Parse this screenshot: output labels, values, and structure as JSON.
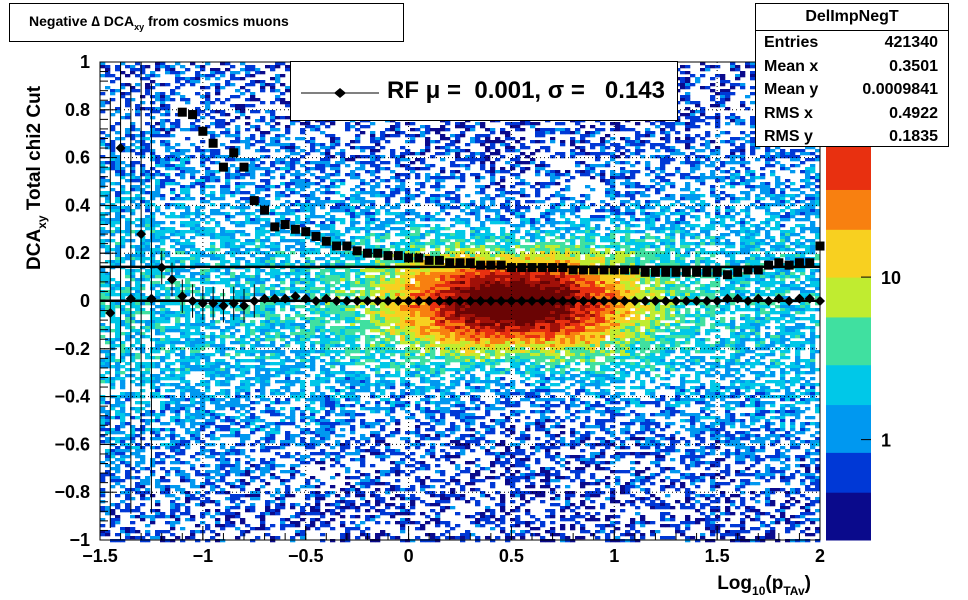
{
  "title": {
    "pre": "Negative ",
    "delta": "∆",
    "dca": " DCA",
    "sub": "xy",
    "post": " from cosmics muons"
  },
  "stats": {
    "name": "DelImpNegT",
    "rows": [
      {
        "label": "Entries",
        "value": "421340"
      },
      {
        "label": "Mean x",
        "value": "0.3501"
      },
      {
        "label": "Mean y",
        "value": "0.0009841"
      },
      {
        "label": "RMS x",
        "value": "0.4922"
      },
      {
        "label": "RMS y",
        "value": "0.1835"
      }
    ]
  },
  "legend": {
    "label": "RF μ =  0.001, σ =   0.143"
  },
  "colors": {
    "markers": "#000000",
    "fit_line": "#000000",
    "palette": [
      "#0a0a8c",
      "#0038d6",
      "#0098f0",
      "#00c8e8",
      "#40e0a0",
      "#c0ec30",
      "#f8d020",
      "#f88010",
      "#e83010",
      "#a01008",
      "#6a0404"
    ]
  },
  "chart_data": {
    "type": "heatmap",
    "title": "Negative ∆ DCA xy from cosmics muons",
    "xlabel": "Log10(pTAv)",
    "ylabel": "DCAxy  Total chi2 Cut",
    "xlim": [
      -1.5,
      2
    ],
    "ylim": [
      -1,
      1
    ],
    "x_ticks": [
      "−1.5",
      "−1",
      "−0.5",
      "0",
      "0.5",
      "1",
      "1.5",
      "2"
    ],
    "y_ticks": [
      "−1",
      "−0.8",
      "−0.6",
      "−0.4",
      "−0.2",
      "0",
      "0.2",
      "0.4",
      "0.6",
      "0.8",
      "1"
    ],
    "z_scale": "log",
    "z_ticks": [
      "1",
      "10"
    ],
    "grid": true,
    "series": [
      {
        "name": "RF μ",
        "marker": "diamond",
        "x": [
          -1.45,
          -1.4,
          -1.35,
          -1.3,
          -1.25,
          -1.2,
          -1.15,
          -1.1,
          -1.05,
          -1.0,
          -0.95,
          -0.9,
          -0.85,
          -0.8,
          -0.75,
          -0.7,
          -0.65,
          -0.6,
          -0.55,
          -0.5,
          -0.45,
          -0.4,
          -0.35,
          -0.3,
          -0.25,
          -0.2,
          -0.15,
          -0.1,
          -0.05,
          0.0,
          0.05,
          0.1,
          0.15,
          0.2,
          0.25,
          0.3,
          0.35,
          0.4,
          0.45,
          0.5,
          0.55,
          0.6,
          0.65,
          0.7,
          0.75,
          0.8,
          0.85,
          0.9,
          0.95,
          1.0,
          1.05,
          1.1,
          1.15,
          1.2,
          1.25,
          1.3,
          1.35,
          1.4,
          1.45,
          1.5,
          1.55,
          1.6,
          1.65,
          1.7,
          1.75,
          1.8,
          1.85,
          1.9,
          1.95,
          2.0
        ],
        "y": [
          -0.05,
          0.64,
          0.01,
          0.28,
          0.01,
          0.14,
          0.09,
          0.02,
          0.0,
          -0.01,
          -0.01,
          -0.02,
          -0.01,
          -0.02,
          0.0,
          0.01,
          0.01,
          0.01,
          0.02,
          0.01,
          0.0,
          0.01,
          0.0,
          0.0,
          0.0,
          0.0,
          0.0,
          0.0,
          0.0,
          0.0,
          0.0,
          0.0,
          0.0,
          0.0,
          0.0,
          0.0,
          0.0,
          0.0,
          0.0,
          0.0,
          0.0,
          0.0,
          0.0,
          0.0,
          0.0,
          0.0,
          0.0,
          0.0,
          0.0,
          0.0,
          0.0,
          0.0,
          0.0,
          0.0,
          0.0,
          0.0,
          0.0,
          0.0,
          0.0,
          0.0,
          0.01,
          0.01,
          0.0,
          0.01,
          0.0,
          0.01,
          0.0,
          0.01,
          0.01,
          0.0
        ]
      },
      {
        "name": "σ",
        "marker": "square",
        "x": [
          -1.1,
          -1.05,
          -1.0,
          -0.95,
          -0.9,
          -0.85,
          -0.8,
          -0.75,
          -0.7,
          -0.65,
          -0.6,
          -0.55,
          -0.5,
          -0.45,
          -0.4,
          -0.35,
          -0.3,
          -0.25,
          -0.2,
          -0.15,
          -0.1,
          -0.05,
          0.0,
          0.05,
          0.1,
          0.15,
          0.2,
          0.25,
          0.3,
          0.35,
          0.4,
          0.45,
          0.5,
          0.55,
          0.6,
          0.65,
          0.7,
          0.75,
          0.8,
          0.85,
          0.9,
          0.95,
          1.0,
          1.05,
          1.1,
          1.15,
          1.2,
          1.25,
          1.3,
          1.35,
          1.4,
          1.45,
          1.5,
          1.55,
          1.6,
          1.65,
          1.7,
          1.75,
          1.8,
          1.85,
          1.9,
          1.95,
          2.0
        ],
        "y": [
          0.79,
          0.78,
          0.71,
          0.66,
          0.56,
          0.62,
          0.56,
          0.42,
          0.38,
          0.31,
          0.32,
          0.3,
          0.29,
          0.27,
          0.25,
          0.23,
          0.23,
          0.21,
          0.2,
          0.2,
          0.19,
          0.19,
          0.18,
          0.18,
          0.17,
          0.17,
          0.16,
          0.16,
          0.16,
          0.15,
          0.15,
          0.15,
          0.14,
          0.14,
          0.14,
          0.14,
          0.14,
          0.14,
          0.13,
          0.13,
          0.13,
          0.13,
          0.13,
          0.13,
          0.13,
          0.12,
          0.12,
          0.12,
          0.12,
          0.12,
          0.12,
          0.12,
          0.12,
          0.11,
          0.12,
          0.13,
          0.13,
          0.15,
          0.16,
          0.15,
          0.16,
          0.16,
          0.23
        ]
      }
    ],
    "fit_lines": [
      {
        "name": "RF μ",
        "y": 0.001
      },
      {
        "name": "σ",
        "y": 0.143
      }
    ]
  }
}
